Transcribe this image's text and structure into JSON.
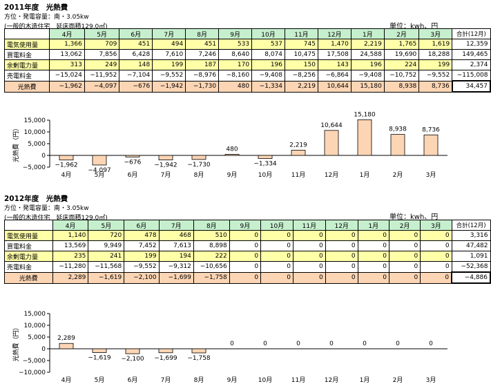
{
  "tables": [
    {
      "title": "2011年度　光熱費",
      "subtitle": "方位・発電容量：南・3.05kw",
      "note": "(一般的木造住宅　延床面積129.0㎡)",
      "unit": "単位：kwh、円",
      "months": [
        "4月",
        "5月",
        "6月",
        "7月",
        "8月",
        "9月",
        "10月",
        "11月",
        "12月",
        "1月",
        "2月",
        "3月"
      ],
      "total_header": "合計(12月)",
      "rows": [
        {
          "label": "電気使用量",
          "values": [
            "1,366",
            "709",
            "451",
            "494",
            "451",
            "533",
            "537",
            "745",
            "1,470",
            "2,219",
            "1,765",
            "1,619"
          ],
          "total": "12,359",
          "style": "y"
        },
        {
          "label": "買電料金",
          "values": [
            "13,062",
            "7,856",
            "6,428",
            "7,610",
            "7,246",
            "8,640",
            "8,074",
            "10,475",
            "17,508",
            "24,588",
            "19,690",
            "18,288"
          ],
          "total": "149,465",
          "style": "w"
        },
        {
          "label": "余剰電力量",
          "values": [
            "313",
            "249",
            "148",
            "199",
            "187",
            "170",
            "196",
            "150",
            "143",
            "196",
            "224",
            "199"
          ],
          "total": "2,374",
          "style": "y"
        },
        {
          "label": "売電料金",
          "values": [
            "−15,024",
            "−11,952",
            "−7,104",
            "−9,552",
            "−8,976",
            "−8,160",
            "−9,408",
            "−8,256",
            "−6,864",
            "−9,408",
            "−10,752",
            "−9,552"
          ],
          "total": "−115,008",
          "style": "w"
        },
        {
          "label": "光熱費",
          "values": [
            "−1,962",
            "−4,097",
            "−676",
            "−1,942",
            "−1,730",
            "480",
            "−1,334",
            "2,219",
            "10,644",
            "15,180",
            "8,938",
            "8,736"
          ],
          "total": "34,457",
          "style": "o"
        }
      ]
    },
    {
      "title": "2012年度　光熱費",
      "subtitle": "方位・発電容量：南・3.05kw",
      "note": "(一般的木造住宅　延床面積129.0㎡)",
      "unit": "単位：kwh、円",
      "months": [
        "4月",
        "5月",
        "6月",
        "7月",
        "8月",
        "9月",
        "10月",
        "11月",
        "12月",
        "1月",
        "2月",
        "3月"
      ],
      "total_header": "合計(12月)",
      "rows": [
        {
          "label": "電気使用量",
          "values": [
            "1,140",
            "720",
            "478",
            "468",
            "510",
            "0",
            "0",
            "0",
            "0",
            "0",
            "0",
            "0"
          ],
          "total": "3,316",
          "style": "y"
        },
        {
          "label": "買電料金",
          "values": [
            "13,569",
            "9,949",
            "7,452",
            "7,613",
            "8,898",
            "0",
            "0",
            "0",
            "0",
            "0",
            "0",
            "0"
          ],
          "total": "47,482",
          "style": "w"
        },
        {
          "label": "余剰電力量",
          "values": [
            "235",
            "241",
            "199",
            "194",
            "222",
            "0",
            "0",
            "0",
            "0",
            "0",
            "0",
            "0"
          ],
          "total": "1,091",
          "style": "y"
        },
        {
          "label": "売電料金",
          "values": [
            "−11,280",
            "−11,568",
            "−9,552",
            "−9,312",
            "−10,656",
            "0",
            "0",
            "0",
            "0",
            "0",
            "0",
            "0"
          ],
          "total": "−52,368",
          "style": "w"
        },
        {
          "label": "光熱費",
          "values": [
            "2,289",
            "−1,619",
            "−2,100",
            "−1,699",
            "−1,758",
            "0",
            "0",
            "0",
            "0",
            "0",
            "0",
            "0"
          ],
          "total": "−4,886",
          "style": "o"
        }
      ]
    }
  ],
  "chart_data": [
    {
      "type": "bar",
      "ylabel": "光熱費（円）",
      "categories": [
        "4月",
        "5月",
        "6月",
        "7月",
        "8月",
        "9月",
        "10月",
        "11月",
        "12月",
        "1月",
        "2月",
        "3月"
      ],
      "values": [
        -1962,
        -4097,
        -676,
        -1942,
        -1730,
        480,
        -1334,
        2219,
        10644,
        15180,
        8938,
        8736
      ],
      "labels": [
        "−1,962",
        "−4,097",
        "−676",
        "−1,942",
        "−1,730",
        "480",
        "−1,334",
        "2,219",
        "10,644",
        "15,180",
        "8,938",
        "8,736"
      ],
      "ylim": [
        -5000,
        15000
      ],
      "yticks": [
        "15,000",
        "10,000",
        "5,000",
        "0",
        "−5,000"
      ],
      "ytick_values": [
        15000,
        10000,
        5000,
        0,
        -5000
      ],
      "bar_color": "#fcd5b4"
    },
    {
      "type": "bar",
      "ylabel": "光熱費（円）",
      "categories": [
        "4月",
        "5月",
        "6月",
        "7月",
        "8月",
        "9月",
        "10月",
        "11月",
        "12月",
        "1月",
        "2月",
        "3月"
      ],
      "values": [
        2289,
        -1619,
        -2100,
        -1699,
        -1758,
        0,
        0,
        0,
        0,
        0,
        0,
        0
      ],
      "labels": [
        "2,289",
        "−1,619",
        "−2,100",
        "−1,699",
        "−1,758",
        "0",
        "0",
        "0",
        "0",
        "0",
        "0",
        "0"
      ],
      "ylim": [
        -10000,
        15000
      ],
      "yticks": [
        "15,000",
        "10,000",
        "5,000",
        "0",
        "−5,000",
        "−10,000"
      ],
      "ytick_values": [
        15000,
        10000,
        5000,
        0,
        -5000,
        -10000
      ],
      "bar_color": "#fcd5b4"
    }
  ]
}
